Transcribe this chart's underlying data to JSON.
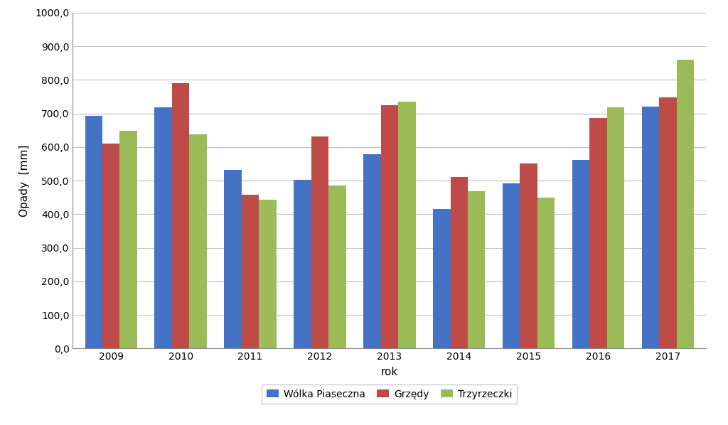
{
  "years": [
    2009,
    2010,
    2011,
    2012,
    2013,
    2014,
    2015,
    2016,
    2017
  ],
  "wolka_piaseczna": [
    693,
    718,
    533,
    502,
    578,
    415,
    491,
    561,
    720
  ],
  "grzedy": [
    611,
    791,
    457,
    632,
    724,
    510,
    551,
    686,
    747
  ],
  "trzyrzeczki": [
    648,
    638,
    443,
    485,
    735,
    468,
    449,
    719,
    860
  ],
  "color_wolka": "#4472C4",
  "color_grzedy": "#BE4B48",
  "color_trzyr": "#9BBB59",
  "ylabel": "Opady  [mm]",
  "xlabel": "rok",
  "legend_wolka": "Wólka Piaseczna",
  "legend_grzedy": "Grzędy",
  "legend_trzyr": "Trzyrzeczki",
  "ylim": [
    0,
    1000
  ],
  "yticks": [
    0,
    100,
    200,
    300,
    400,
    500,
    600,
    700,
    800,
    900,
    1000
  ],
  "ytick_labels": [
    "0,0",
    "100,0",
    "200,0",
    "300,0",
    "400,0",
    "500,0",
    "600,0",
    "700,0",
    "800,0",
    "900,0",
    "1000,0"
  ],
  "background_color": "#FFFFFF",
  "grid_color": "#C0C0C0",
  "bar_width": 0.25,
  "figsize": [
    10.24,
    5.98
  ],
  "dpi": 100
}
